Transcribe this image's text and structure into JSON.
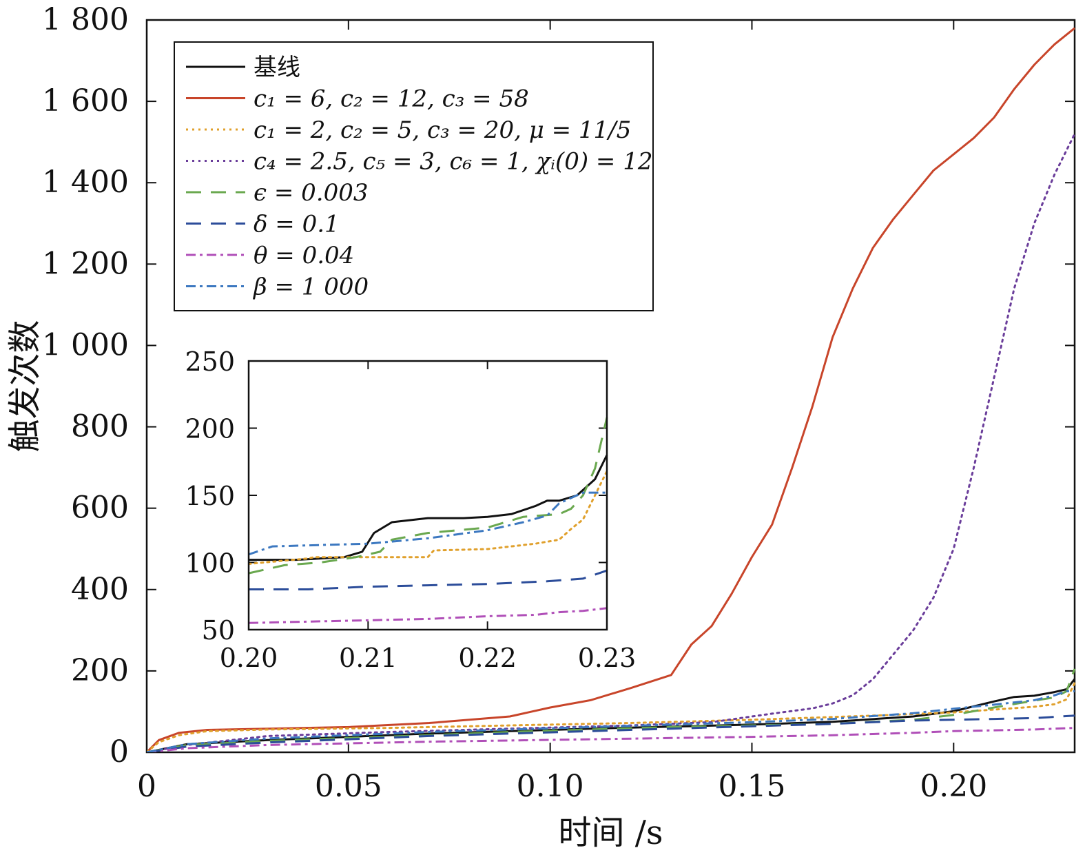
{
  "chart_data": [
    {
      "type": "line",
      "xlabel": "时间 /s",
      "ylabel": "触发次数",
      "xlim": [
        0,
        0.23
      ],
      "ylim": [
        0,
        1800
      ],
      "x_ticks": [
        0,
        0.05,
        0.1,
        0.15,
        0.2
      ],
      "x_tick_labels": [
        "0",
        "0.05",
        "0.10",
        "0.15",
        "0.20"
      ],
      "y_ticks": [
        0,
        200,
        400,
        600,
        800,
        1000,
        1200,
        1400,
        1600,
        1800
      ],
      "y_tick_labels": [
        "0",
        "200",
        "400",
        "600",
        "800",
        "1 000",
        "1 200",
        "1 400",
        "1 600",
        "1 800"
      ],
      "legend_position": "top-left",
      "series": [
        {
          "name": "基线",
          "color": "#111111",
          "dash": "solid",
          "points": [
            [
              0,
              0
            ],
            [
              0.01,
              20
            ],
            [
              0.03,
              30
            ],
            [
              0.05,
              38
            ],
            [
              0.07,
              46
            ],
            [
              0.09,
              52
            ],
            [
              0.11,
              58
            ],
            [
              0.13,
              63
            ],
            [
              0.15,
              68
            ],
            [
              0.17,
              75
            ],
            [
              0.19,
              88
            ],
            [
              0.2,
              101
            ],
            [
              0.21,
              125
            ],
            [
              0.215,
              136
            ],
            [
              0.22,
              139
            ],
            [
              0.225,
              148
            ],
            [
              0.228,
              155
            ],
            [
              0.23,
              180
            ]
          ]
        },
        {
          "name": "c₁ = 6, c₂ = 12, c₃ = 58",
          "color": "#c8452a",
          "dash": "solid",
          "points": [
            [
              0,
              0
            ],
            [
              0.003,
              30
            ],
            [
              0.008,
              48
            ],
            [
              0.015,
              55
            ],
            [
              0.03,
              58
            ],
            [
              0.05,
              62
            ],
            [
              0.07,
              72
            ],
            [
              0.09,
              88
            ],
            [
              0.1,
              110
            ],
            [
              0.11,
              128
            ],
            [
              0.12,
              158
            ],
            [
              0.13,
              190
            ],
            [
              0.135,
              265
            ],
            [
              0.14,
              310
            ],
            [
              0.145,
              390
            ],
            [
              0.15,
              480
            ],
            [
              0.155,
              560
            ],
            [
              0.16,
              700
            ],
            [
              0.165,
              850
            ],
            [
              0.17,
              1020
            ],
            [
              0.175,
              1140
            ],
            [
              0.18,
              1240
            ],
            [
              0.185,
              1310
            ],
            [
              0.19,
              1370
            ],
            [
              0.195,
              1430
            ],
            [
              0.2,
              1470
            ],
            [
              0.205,
              1510
            ],
            [
              0.21,
              1560
            ],
            [
              0.215,
              1630
            ],
            [
              0.22,
              1690
            ],
            [
              0.225,
              1740
            ],
            [
              0.23,
              1780
            ]
          ]
        },
        {
          "name": "c₁ = 2, c₂ = 5, c₃ = 20, μ = 11/5",
          "color": "#e0a02c",
          "dash": "dot",
          "points": [
            [
              0,
              0
            ],
            [
              0.003,
              25
            ],
            [
              0.008,
              42
            ],
            [
              0.015,
              52
            ],
            [
              0.03,
              56
            ],
            [
              0.06,
              60
            ],
            [
              0.09,
              66
            ],
            [
              0.12,
              72
            ],
            [
              0.15,
              80
            ],
            [
              0.18,
              90
            ],
            [
              0.2,
              98
            ],
            [
              0.21,
              105
            ],
            [
              0.22,
              112
            ],
            [
              0.225,
              118
            ],
            [
              0.228,
              130
            ],
            [
              0.23,
              170
            ]
          ]
        },
        {
          "name": "c₄ = 2.5, c₅ = 3, c₆ = 1, χᵢ(0) = 12",
          "color": "#6a3d9a",
          "dash": "dot",
          "points": [
            [
              0,
              0
            ],
            [
              0.01,
              18
            ],
            [
              0.03,
              40
            ],
            [
              0.06,
              50
            ],
            [
              0.09,
              58
            ],
            [
              0.12,
              66
            ],
            [
              0.14,
              74
            ],
            [
              0.155,
              95
            ],
            [
              0.165,
              108
            ],
            [
              0.17,
              120
            ],
            [
              0.175,
              140
            ],
            [
              0.18,
              180
            ],
            [
              0.185,
              240
            ],
            [
              0.19,
              300
            ],
            [
              0.195,
              380
            ],
            [
              0.2,
              500
            ],
            [
              0.205,
              700
            ],
            [
              0.21,
              920
            ],
            [
              0.215,
              1140
            ],
            [
              0.22,
              1300
            ],
            [
              0.225,
              1420
            ],
            [
              0.23,
              1520
            ]
          ]
        },
        {
          "name": "ϵ = 0.003",
          "color": "#6aa84f",
          "dash": "dash",
          "points": [
            [
              0,
              0
            ],
            [
              0.01,
              18
            ],
            [
              0.03,
              28
            ],
            [
              0.05,
              35
            ],
            [
              0.07,
              42
            ],
            [
              0.09,
              50
            ],
            [
              0.11,
              56
            ],
            [
              0.13,
              62
            ],
            [
              0.15,
              66
            ],
            [
              0.17,
              70
            ],
            [
              0.19,
              80
            ],
            [
              0.2,
              92
            ],
            [
              0.21,
              110
            ],
            [
              0.22,
              127
            ],
            [
              0.225,
              135
            ],
            [
              0.228,
              150
            ],
            [
              0.23,
              205
            ]
          ]
        },
        {
          "name": "δ = 0.1",
          "color": "#2c4d9a",
          "dash": "dash",
          "points": [
            [
              0,
              0
            ],
            [
              0.01,
              14
            ],
            [
              0.03,
              24
            ],
            [
              0.05,
              32
            ],
            [
              0.07,
              40
            ],
            [
              0.09,
              46
            ],
            [
              0.11,
              52
            ],
            [
              0.13,
              58
            ],
            [
              0.15,
              64
            ],
            [
              0.17,
              70
            ],
            [
              0.19,
              78
            ],
            [
              0.2,
              80
            ],
            [
              0.21,
              82
            ],
            [
              0.22,
              84
            ],
            [
              0.23,
              90
            ]
          ]
        },
        {
          "name": "θ = 0.04",
          "color": "#b04fb8",
          "dash": "dashdot",
          "points": [
            [
              0,
              0
            ],
            [
              0.01,
              10
            ],
            [
              0.03,
              18
            ],
            [
              0.05,
              22
            ],
            [
              0.07,
              26
            ],
            [
              0.09,
              29
            ],
            [
              0.11,
              32
            ],
            [
              0.13,
              35
            ],
            [
              0.15,
              38
            ],
            [
              0.17,
              42
            ],
            [
              0.19,
              48
            ],
            [
              0.2,
              52
            ],
            [
              0.21,
              54
            ],
            [
              0.22,
              56
            ],
            [
              0.23,
              60
            ]
          ]
        },
        {
          "name": "β = 1 000",
          "color": "#3c78c0",
          "dash": "dashdot",
          "points": [
            [
              0,
              0
            ],
            [
              0.01,
              20
            ],
            [
              0.03,
              34
            ],
            [
              0.05,
              42
            ],
            [
              0.07,
              50
            ],
            [
              0.09,
              56
            ],
            [
              0.11,
              62
            ],
            [
              0.13,
              68
            ],
            [
              0.15,
              74
            ],
            [
              0.17,
              82
            ],
            [
              0.19,
              96
            ],
            [
              0.2,
              107
            ],
            [
              0.21,
              117
            ],
            [
              0.22,
              128
            ],
            [
              0.225,
              140
            ],
            [
              0.228,
              150
            ],
            [
              0.23,
              150
            ]
          ]
        }
      ]
    },
    {
      "type": "line",
      "xlim": [
        0.2,
        0.23
      ],
      "ylim": [
        50,
        250
      ],
      "x_ticks": [
        0.2,
        0.21,
        0.22,
        0.23
      ],
      "x_tick_labels": [
        "0.20",
        "0.21",
        "0.22",
        "0.23"
      ],
      "y_ticks": [
        50,
        100,
        150,
        200,
        250
      ],
      "y_tick_labels": [
        "50",
        "100",
        "150",
        "200",
        "250"
      ],
      "series": [
        {
          "name": "基线",
          "color": "#111111",
          "dash": "solid",
          "points": [
            [
              0.2,
              102
            ],
            [
              0.204,
              102
            ],
            [
              0.208,
              104
            ],
            [
              0.2095,
              108
            ],
            [
              0.2105,
              122
            ],
            [
              0.212,
              130
            ],
            [
              0.215,
              133
            ],
            [
              0.218,
              133
            ],
            [
              0.22,
              134
            ],
            [
              0.222,
              136
            ],
            [
              0.224,
              142
            ],
            [
              0.225,
              146
            ],
            [
              0.226,
              146
            ],
            [
              0.2275,
              150
            ],
            [
              0.229,
              162
            ],
            [
              0.23,
              180
            ]
          ]
        },
        {
          "name": "c₁ = 2, c₂ = 5, c₃ = 20, μ = 11/5",
          "color": "#e0a02c",
          "dash": "dot",
          "points": [
            [
              0.2,
              99
            ],
            [
              0.205,
              103
            ],
            [
              0.2055,
              104
            ],
            [
              0.21,
              104
            ],
            [
              0.215,
              104
            ],
            [
              0.2155,
              109
            ],
            [
              0.22,
              110
            ],
            [
              0.222,
              112
            ],
            [
              0.224,
              114
            ],
            [
              0.226,
              117
            ],
            [
              0.227,
              125
            ],
            [
              0.228,
              132
            ],
            [
              0.229,
              150
            ],
            [
              0.23,
              168
            ]
          ]
        },
        {
          "name": "ϵ = 0.003",
          "color": "#6aa84f",
          "dash": "dash",
          "points": [
            [
              0.2,
              92
            ],
            [
              0.203,
              98
            ],
            [
              0.206,
              100
            ],
            [
              0.209,
              104
            ],
            [
              0.211,
              108
            ],
            [
              0.212,
              117
            ],
            [
              0.215,
              122
            ],
            [
              0.22,
              126
            ],
            [
              0.223,
              134
            ],
            [
              0.226,
              136
            ],
            [
              0.227,
              140
            ],
            [
              0.228,
              150
            ],
            [
              0.229,
              170
            ],
            [
              0.23,
              208
            ]
          ]
        },
        {
          "name": "δ = 0.1",
          "color": "#2c4d9a",
          "dash": "dash",
          "points": [
            [
              0.2,
              80
            ],
            [
              0.205,
              80
            ],
            [
              0.21,
              82
            ],
            [
              0.215,
              83
            ],
            [
              0.22,
              84
            ],
            [
              0.225,
              86
            ],
            [
              0.228,
              88
            ],
            [
              0.23,
              94
            ]
          ]
        },
        {
          "name": "θ = 0.04",
          "color": "#b04fb8",
          "dash": "dashdot",
          "points": [
            [
              0.2,
              55
            ],
            [
              0.205,
              56
            ],
            [
              0.21,
              57
            ],
            [
              0.215,
              58
            ],
            [
              0.22,
              60
            ],
            [
              0.224,
              61
            ],
            [
              0.226,
              63
            ],
            [
              0.228,
              64
            ],
            [
              0.23,
              66
            ]
          ]
        },
        {
          "name": "β = 1 000",
          "color": "#3c78c0",
          "dash": "dashdot",
          "points": [
            [
              0.2,
              106
            ],
            [
              0.202,
              112
            ],
            [
              0.21,
              114
            ],
            [
              0.215,
              118
            ],
            [
              0.22,
              124
            ],
            [
              0.223,
              130
            ],
            [
              0.225,
              135
            ],
            [
              0.226,
              144
            ],
            [
              0.228,
              152
            ],
            [
              0.23,
              152
            ]
          ]
        }
      ]
    }
  ]
}
